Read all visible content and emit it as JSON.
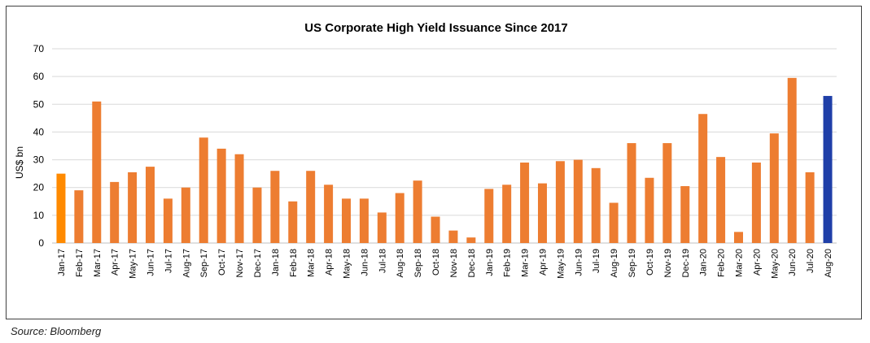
{
  "chart_data": {
    "type": "bar",
    "title": "US Corporate High Yield Issuance Since 2017",
    "xlabel": "",
    "ylabel": "US$ bn",
    "ylim": [
      0,
      70
    ],
    "yticks": [
      0,
      10,
      20,
      30,
      40,
      50,
      60,
      70
    ],
    "grid": true,
    "legend": "none",
    "categories": [
      "Jan-17",
      "Feb-17",
      "Mar-17",
      "Apr-17",
      "May-17",
      "Jun-17",
      "Jul-17",
      "Aug-17",
      "Sep-17",
      "Oct-17",
      "Nov-17",
      "Dec-17",
      "Jan-18",
      "Feb-18",
      "Mar-18",
      "Apr-18",
      "May-18",
      "Jun-18",
      "Jul-18",
      "Aug-18",
      "Sep-18",
      "Oct-18",
      "Nov-18",
      "Dec-18",
      "Jan-19",
      "Feb-19",
      "Mar-19",
      "Apr-19",
      "May-19",
      "Jun-19",
      "Jul-19",
      "Aug-19",
      "Sep-19",
      "Oct-19",
      "Nov-19",
      "Dec-19",
      "Jan-20",
      "Feb-20",
      "Mar-20",
      "Apr-20",
      "May-20",
      "Jun-20",
      "Jul-20",
      "Aug-20"
    ],
    "values": [
      25,
      19,
      51,
      22,
      25.5,
      27.5,
      16,
      20,
      38,
      34,
      32,
      20,
      26,
      15,
      26,
      21,
      16,
      16,
      11,
      18,
      22.5,
      9.5,
      4.5,
      2,
      19.5,
      21,
      29,
      21.5,
      29.5,
      30,
      27,
      14.5,
      36,
      23.5,
      36,
      20.5,
      46.5,
      31,
      4,
      29,
      39.5,
      59.5,
      25.5,
      53
    ],
    "colors": {
      "default": "#ED7D31",
      "first": "#FF8A00",
      "last": "#1F3FA8",
      "grid": "#D9D9D9",
      "axis": "#BFBFBF"
    }
  },
  "footer": {
    "source": "Source: Bloomberg"
  }
}
